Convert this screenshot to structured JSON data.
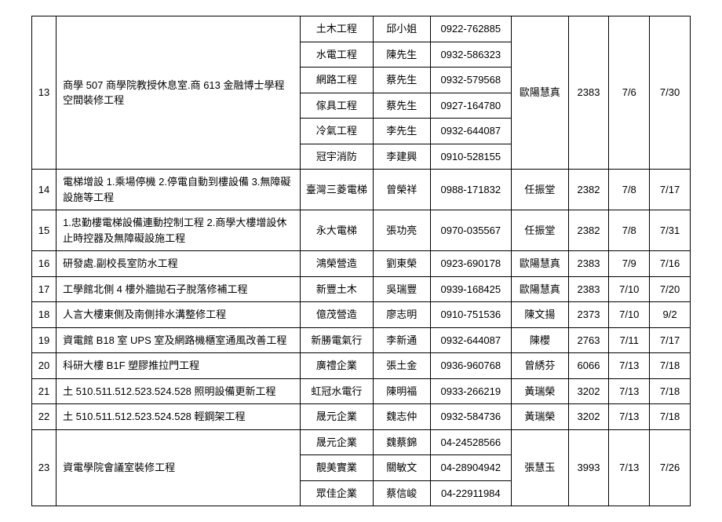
{
  "table": {
    "font_size_pt": 10,
    "border_color": "#000000",
    "background_color": "#ffffff",
    "text_color": "#000000",
    "rows": [
      {
        "num": "13",
        "desc": "商學 507 商學院教授休息室.商 613 金融博士學程空間裝修工程",
        "sub": [
          {
            "vendor": "土木工程",
            "person": "邱小姐",
            "phone": "0922-762885"
          },
          {
            "vendor": "水電工程",
            "person": "陳先生",
            "phone": "0932-586323"
          },
          {
            "vendor": "網路工程",
            "person": "蔡先生",
            "phone": "0932-579568"
          },
          {
            "vendor": "傢具工程",
            "person": "蔡先生",
            "phone": "0927-164780"
          },
          {
            "vendor": "冷氣工程",
            "person": "李先生",
            "phone": "0932-644087"
          },
          {
            "vendor": "冠宇消防",
            "person": "李建興",
            "phone": "0910-528155"
          }
        ],
        "staff": "歐陽慧真",
        "code": "2383",
        "d1": "7/6",
        "d2": "7/30"
      },
      {
        "num": "14",
        "desc": "電梯增設 1.乘場停機 2.停電自動到樓設備 3.無障礙設施等工程",
        "sub": [
          {
            "vendor": "臺灣三菱電梯",
            "person": "曾榮祥",
            "phone": "0988-171832"
          }
        ],
        "staff": "任振堂",
        "code": "2382",
        "d1": "7/8",
        "d2": "7/17"
      },
      {
        "num": "15",
        "desc": "1.忠勤樓電梯設備連動控制工程 2.商學大樓增設休止時控器及無障礙設施工程",
        "sub": [
          {
            "vendor": "永大電梯",
            "person": "張功亮",
            "phone": "0970-035567"
          }
        ],
        "staff": "任振堂",
        "code": "2382",
        "d1": "7/8",
        "d2": "7/31"
      },
      {
        "num": "16",
        "desc": "研發處.副校長室防水工程",
        "sub": [
          {
            "vendor": "鴻榮營造",
            "person": "劉東榮",
            "phone": "0923-690178"
          }
        ],
        "staff": "歐陽慧真",
        "code": "2383",
        "d1": "7/9",
        "d2": "7/16"
      },
      {
        "num": "17",
        "desc": "工學館北側 4 樓外牆拋石子脫落修補工程",
        "sub": [
          {
            "vendor": "新豐土木",
            "person": "吳瑞豐",
            "phone": "0939-168425"
          }
        ],
        "staff": "歐陽慧真",
        "code": "2383",
        "d1": "7/10",
        "d2": "7/20"
      },
      {
        "num": "18",
        "desc": "人言大樓東側及南側排水溝整修工程",
        "sub": [
          {
            "vendor": "億茂營造",
            "person": "廖志明",
            "phone": "0910-751536"
          }
        ],
        "staff": "陳文揚",
        "code": "2373",
        "d1": "7/10",
        "d2": "9/2"
      },
      {
        "num": "19",
        "desc": "資電館 B18 室 UPS 室及網路機櫃室通風改善工程",
        "sub": [
          {
            "vendor": "新勝電氣行",
            "person": "李新通",
            "phone": "0932-644087"
          }
        ],
        "staff": "陳櫻",
        "code": "2763",
        "d1": "7/11",
        "d2": "7/17"
      },
      {
        "num": "20",
        "desc": "科研大樓 B1F 塑膠推拉門工程",
        "sub": [
          {
            "vendor": "廣禮企業",
            "person": "張土金",
            "phone": "0936-960768"
          }
        ],
        "staff": "曾綉芬",
        "code": "6066",
        "d1": "7/13",
        "d2": "7/18"
      },
      {
        "num": "21",
        "desc": "土 510.511.512.523.524.528 照明設備更新工程",
        "sub": [
          {
            "vendor": "虹冠水電行",
            "person": "陳明福",
            "phone": "0933-266219"
          }
        ],
        "staff": "黃瑞榮",
        "code": "3202",
        "d1": "7/13",
        "d2": "7/18"
      },
      {
        "num": "22",
        "desc": "土 510.511.512.523.524.528 輕鋼架工程",
        "sub": [
          {
            "vendor": "晟元企業",
            "person": "魏志仲",
            "phone": "0932-584736"
          }
        ],
        "staff": "黃瑞榮",
        "code": "3202",
        "d1": "7/13",
        "d2": "7/18"
      },
      {
        "num": "23",
        "desc": "資電學院會議室裝修工程",
        "sub": [
          {
            "vendor": "晟元企業",
            "person": "魏蔡錦",
            "phone": "04-24528566"
          },
          {
            "vendor": "靚美實業",
            "person": "關敏文",
            "phone": "04-28904942"
          },
          {
            "vendor": "眾佳企業",
            "person": "蔡信峻",
            "phone": "04-22911984"
          }
        ],
        "staff": "張慧玉",
        "code": "3993",
        "d1": "7/13",
        "d2": "7/26"
      }
    ]
  }
}
